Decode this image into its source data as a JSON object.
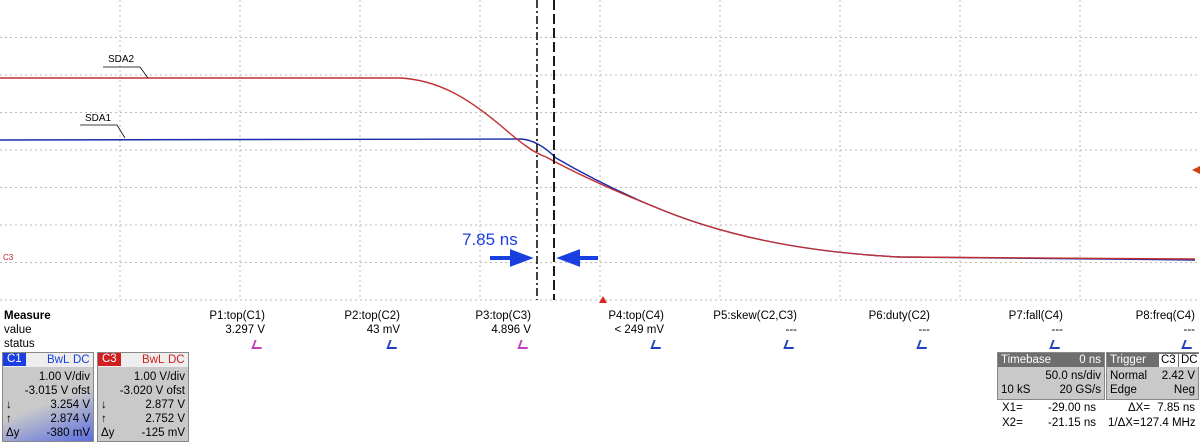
{
  "traces": {
    "sda2": "SDA2",
    "sda1": "SDA1",
    "c3_marker": "C3"
  },
  "annotation": "7.85 ns",
  "measure": {
    "header": "Measure",
    "row_labels": [
      "value",
      "status"
    ],
    "params": [
      {
        "name": "P1:top(C1)",
        "value": "3.297 V"
      },
      {
        "name": "P2:top(C2)",
        "value": "43 mV"
      },
      {
        "name": "P3:top(C3)",
        "value": "4.896 V"
      },
      {
        "name": "P4:top(C4)",
        "value": "< 249 mV"
      },
      {
        "name": "P5:skew(C2,C3)",
        "value": "---"
      },
      {
        "name": "P6:duty(C2)",
        "value": "---"
      },
      {
        "name": "P7:fall(C4)",
        "value": "---"
      },
      {
        "name": "P8:freq(C4)",
        "value": "---"
      }
    ]
  },
  "channels": [
    {
      "label": "C1",
      "bw": "BwL",
      "coupling": "DC",
      "scale": "1.00 V/div",
      "offset": "-3.015 V ofst",
      "cursor1_label": "↓",
      "cursor1": "3.254 V",
      "cursor2_label": "↑",
      "cursor2": "2.874 V",
      "delta_label": "Δy",
      "delta": "-380 mV"
    },
    {
      "label": "C3",
      "bw": "BwL",
      "coupling": "DC",
      "scale": "1.00 V/div",
      "offset": "-3.020 V ofst",
      "cursor1_label": "↓",
      "cursor1": "2.877 V",
      "cursor2_label": "↑",
      "cursor2": "2.752 V",
      "delta_label": "Δy",
      "delta": "-125 mV"
    }
  ],
  "timebase": {
    "title": "Timebase",
    "delay": "0 ns",
    "scale": "50.0 ns/div",
    "samples": "10 kS",
    "rate": "20 GS/s"
  },
  "trigger": {
    "title": "Trigger",
    "source": "C3",
    "coupling": "DC",
    "mode": "Normal",
    "level": "2.42 V",
    "type": "Edge",
    "slope": "Neg"
  },
  "cursors": {
    "x1_label": "X1=",
    "x1": "-29.00 ns",
    "dx_label": "ΔX=",
    "dx": "7.85 ns",
    "x2_label": "X2=",
    "x2": "-21.15 ns",
    "inv_label": "1/ΔX=",
    "inv": "127.4 MHz"
  }
}
